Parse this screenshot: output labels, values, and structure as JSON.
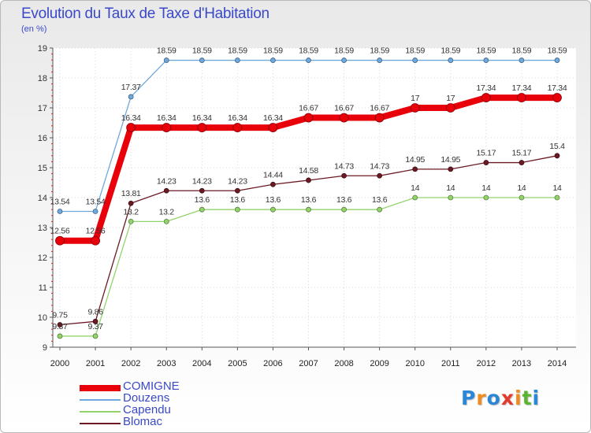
{
  "title": "Evolution du Taux de Taxe d'Habitation",
  "subtitle": "(en %)",
  "logo": {
    "letters": [
      "P",
      "r",
      "o",
      "x",
      "i",
      "t",
      "i"
    ],
    "colors": [
      "#2a86d6",
      "#f08c1c",
      "#2a86d6",
      "#e23b2e",
      "#f08c1c",
      "#5bb430",
      "#2a86d6"
    ]
  },
  "chart_data": {
    "type": "line",
    "title": "Evolution du Taux de Taxe d'Habitation",
    "ylabel": "(en %)",
    "x": [
      "2000",
      "2001",
      "2002",
      "2003",
      "2004",
      "2005",
      "2006",
      "2007",
      "2008",
      "2009",
      "2010",
      "2011",
      "2012",
      "2013",
      "2014"
    ],
    "ylim": [
      9,
      19
    ],
    "yticks": [
      "9",
      "10",
      "11",
      "12",
      "13",
      "14",
      "15",
      "16",
      "17",
      "18",
      "19"
    ],
    "grid": true,
    "legend_position": "bottom-left",
    "series": [
      {
        "name": "COMIGNE",
        "color": "#e8000a",
        "emphasis": true,
        "values": [
          12.56,
          12.56,
          16.34,
          16.34,
          16.34,
          16.34,
          16.34,
          16.67,
          16.67,
          16.67,
          17,
          17,
          17.34,
          17.34,
          17.34
        ],
        "labels": [
          "12.56",
          "12.56",
          "16.34",
          "16.34",
          "16.34",
          "16.34",
          "16.34",
          "16.67",
          "16.67",
          "16.67",
          "17",
          "17",
          "17.34",
          "17.34",
          "17.34"
        ]
      },
      {
        "name": "Douzens",
        "color": "#6fa8dc",
        "emphasis": false,
        "values": [
          13.54,
          13.54,
          17.37,
          18.59,
          18.59,
          18.59,
          18.59,
          18.59,
          18.59,
          18.59,
          18.59,
          18.59,
          18.59,
          18.59,
          18.59
        ],
        "labels": [
          "13.54",
          "13.54",
          "17.37",
          "18.59",
          "18.59",
          "18.59",
          "18.59",
          "18.59",
          "18.59",
          "18.59",
          "18.59",
          "18.59",
          "18.59",
          "18.59",
          "18.59"
        ]
      },
      {
        "name": "Capendu",
        "color": "#93d36b",
        "emphasis": false,
        "values": [
          9.37,
          9.37,
          13.2,
          13.2,
          13.6,
          13.6,
          13.6,
          13.6,
          13.6,
          13.6,
          14,
          14,
          14,
          14,
          14
        ],
        "labels": [
          "9.37",
          "9.37",
          "13.2",
          "13.2",
          "13.6",
          "13.6",
          "13.6",
          "13.6",
          "13.6",
          "13.6",
          "14",
          "14",
          "14",
          "14",
          "14"
        ]
      },
      {
        "name": "Blomac",
        "color": "#6b1a24",
        "emphasis": false,
        "values": [
          9.75,
          9.86,
          13.81,
          14.23,
          14.23,
          14.23,
          14.44,
          14.58,
          14.73,
          14.73,
          14.95,
          14.95,
          15.17,
          15.17,
          15.4
        ],
        "labels": [
          "9.75",
          "9.86",
          "13.81",
          "14.23",
          "14.23",
          "14.23",
          "14.44",
          "14.58",
          "14.73",
          "14.73",
          "14.95",
          "14.95",
          "15.17",
          "15.17",
          "15.4"
        ]
      }
    ]
  }
}
